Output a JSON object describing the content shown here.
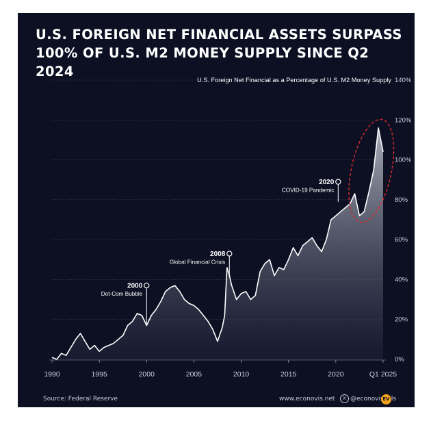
{
  "title_line1": "U.S. FOREIGN NET FINANCIAL ASSETS SURPASS",
  "title_line2": "100% OF U.S. M2 MONEY SUPPLY SINCE Q2 2024",
  "footer": {
    "source": "Source: Federal Reserve",
    "website": "www.econovis.net",
    "handle": "@econovisuals",
    "x_icon": "x-logo-icon",
    "logo_text": "EV"
  },
  "colors": {
    "background": "#0d1023",
    "line": "#ffffff",
    "highlight_ellipse": "#d42a2a",
    "logo": "#f0a21a"
  },
  "chart_data": {
    "type": "area",
    "series_label": "U.S. Foreign Net Financial as a Percentage of U.S. M2 Money Supply",
    "x_ticks": [
      "1990",
      "1995",
      "2000",
      "2005",
      "2010",
      "2015",
      "2020",
      "Q1 2025"
    ],
    "y_ticks": [
      "0%",
      "20%",
      "40%",
      "60%",
      "80%",
      "100%",
      "120%",
      "140%"
    ],
    "xlim": [
      1990,
      2025
    ],
    "ylim": [
      0,
      140
    ],
    "grid": true,
    "annotations": [
      {
        "year": "2000",
        "label": "Dot-Com Bubble",
        "x": 2000,
        "y": 37
      },
      {
        "year": "2008",
        "label": "Global Financial Crisis",
        "x": 2008.75,
        "y": 53
      },
      {
        "year": "2020",
        "label": "COVID-19 Pandemic",
        "x": 2020.25,
        "y": 89
      }
    ],
    "highlight": {
      "x_from": 2022.5,
      "x_to": 2025,
      "y_from": 73,
      "y_to": 116
    },
    "x": [
      1990,
      1990.5,
      1991,
      1991.5,
      1992,
      1992.5,
      1993,
      1993.5,
      1994,
      1994.5,
      1995,
      1995.5,
      1996,
      1996.5,
      1997,
      1997.5,
      1998,
      1998.5,
      1999,
      1999.5,
      2000,
      2000.5,
      2001,
      2001.5,
      2002,
      2002.5,
      2003,
      2003.5,
      2004,
      2004.5,
      2005,
      2005.5,
      2006,
      2006.5,
      2007,
      2007.5,
      2008,
      2008.25,
      2008.5,
      2008.75,
      2009,
      2009.5,
      2010,
      2010.5,
      2011,
      2011.5,
      2012,
      2012.5,
      2013,
      2013.5,
      2014,
      2014.5,
      2015,
      2015.5,
      2016,
      2016.5,
      2017,
      2017.5,
      2018,
      2018.5,
      2019,
      2019.5,
      2020,
      2020.5,
      2021,
      2021.5,
      2022,
      2022.5,
      2023,
      2023.5,
      2024,
      2024.5,
      2025
    ],
    "y": [
      1,
      0,
      3,
      2,
      6,
      10,
      13,
      9,
      5,
      7,
      4,
      6,
      7,
      8,
      10,
      12,
      17,
      19,
      23,
      22,
      17,
      22,
      25,
      29,
      34,
      36,
      37,
      34,
      30,
      28,
      27,
      25,
      22,
      19,
      15,
      9,
      16,
      22,
      46,
      42,
      37,
      30,
      33,
      34,
      30,
      32,
      44,
      48,
      50,
      42,
      46,
      45,
      50,
      56,
      52,
      57,
      59,
      61,
      57,
      54,
      60,
      70,
      72,
      74,
      76,
      78,
      83,
      72,
      74,
      84,
      95,
      116,
      104
    ]
  }
}
